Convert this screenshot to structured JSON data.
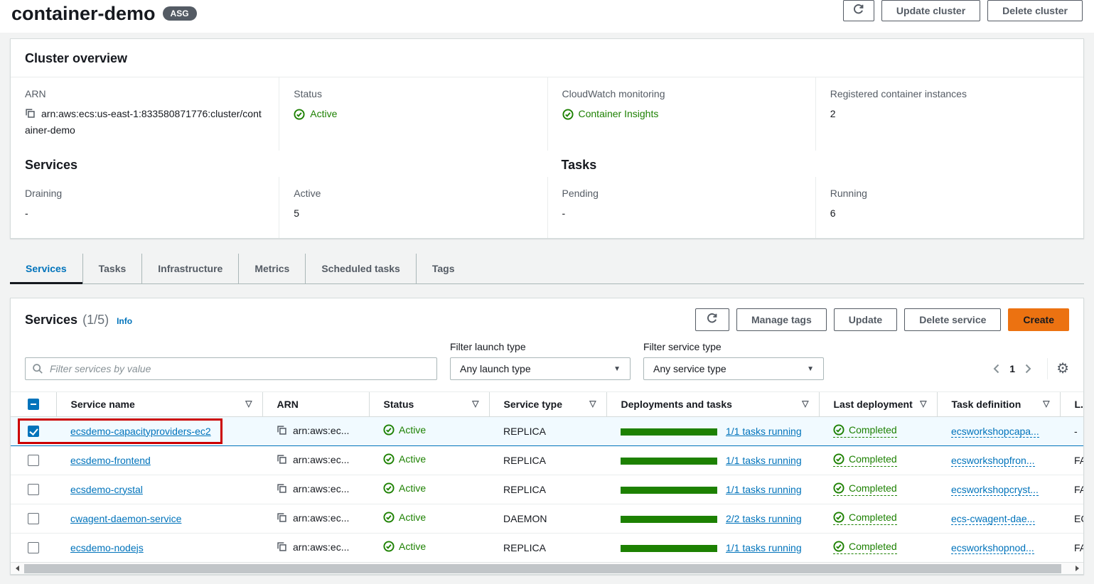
{
  "colors": {
    "link_blue": "#0073bb",
    "status_green": "#1d8102",
    "create_orange": "#ec7211",
    "selected_row_bg": "#f1faff",
    "annotation_red": "#cc0000",
    "badge_gray": "#545b64",
    "active_tab_underline": "#16191f"
  },
  "icons": {
    "sort_indicator": "▽",
    "caret_down": "▼",
    "gear": "⚙"
  },
  "page_header": {
    "title": "container-demo",
    "badge": "ASG",
    "update_button": "Update cluster",
    "delete_button": "Delete cluster"
  },
  "overview": {
    "title": "Cluster overview",
    "row1": [
      {
        "label": "ARN",
        "value": "arn:aws:ecs:us-east-1:833580871776:cluster/container-demo",
        "icon": "copy"
      },
      {
        "label": "Status",
        "value": "Active",
        "icon": "check"
      },
      {
        "label": "CloudWatch monitoring",
        "value": "Container Insights",
        "icon": "check"
      },
      {
        "label": "Registered container instances",
        "value": "2"
      }
    ],
    "services_heading": "Services",
    "tasks_heading": "Tasks",
    "row2": [
      {
        "label": "Draining",
        "value": "-"
      },
      {
        "label": "Active",
        "value": "5"
      },
      {
        "label": "Pending",
        "value": "-"
      },
      {
        "label": "Running",
        "value": "6"
      }
    ]
  },
  "tabs": [
    {
      "label": "Services",
      "active": true
    },
    {
      "label": "Tasks",
      "active": false
    },
    {
      "label": "Infrastructure",
      "active": false
    },
    {
      "label": "Metrics",
      "active": false
    },
    {
      "label": "Scheduled tasks",
      "active": false
    },
    {
      "label": "Tags",
      "active": false
    }
  ],
  "services_panel": {
    "title": "Services",
    "count": "(1/5)",
    "info": "Info",
    "action_buttons": [
      "Manage tags",
      "Update",
      "Delete service"
    ],
    "create_button": "Create",
    "search_placeholder": "Filter services by value",
    "launch_filter_label": "Filter launch type",
    "launch_filter_value": "Any launch type",
    "service_filter_label": "Filter service type",
    "service_filter_value": "Any service type",
    "page_number": "1"
  },
  "table": {
    "columns": [
      {
        "label": "Service name",
        "sortable": true
      },
      {
        "label": "ARN",
        "sortable": false
      },
      {
        "label": "Status",
        "sortable": true
      },
      {
        "label": "Service type",
        "sortable": true
      },
      {
        "label": "Deployments and tasks",
        "sortable": true
      },
      {
        "label": "Last deployment",
        "sortable": true
      },
      {
        "label": "Task definition",
        "sortable": true
      },
      {
        "label": "L.",
        "sortable": false
      }
    ],
    "rows": [
      {
        "checked": true,
        "selected": true,
        "annotated": true,
        "name": "ecsdemo-capacityproviders-ec2",
        "arn": "arn:aws:ec...",
        "status": "Active",
        "service_type": "REPLICA",
        "tasks_link": "1/1 tasks running",
        "deployment": "Completed",
        "task_definition": "ecsworkshopcapa...",
        "launch_type": "-"
      },
      {
        "checked": false,
        "selected": false,
        "annotated": false,
        "name": "ecsdemo-frontend",
        "arn": "arn:aws:ec...",
        "status": "Active",
        "service_type": "REPLICA",
        "tasks_link": "1/1 tasks running",
        "deployment": "Completed",
        "task_definition": "ecsworkshopfron...",
        "launch_type": "FA"
      },
      {
        "checked": false,
        "selected": false,
        "annotated": false,
        "name": "ecsdemo-crystal",
        "arn": "arn:aws:ec...",
        "status": "Active",
        "service_type": "REPLICA",
        "tasks_link": "1/1 tasks running",
        "deployment": "Completed",
        "task_definition": "ecsworkshopcryst...",
        "launch_type": "FA"
      },
      {
        "checked": false,
        "selected": false,
        "annotated": false,
        "name": "cwagent-daemon-service",
        "arn": "arn:aws:ec...",
        "status": "Active",
        "service_type": "DAEMON",
        "tasks_link": "2/2 tasks running",
        "deployment": "Completed",
        "task_definition": "ecs-cwagent-dae...",
        "launch_type": "EC"
      },
      {
        "checked": false,
        "selected": false,
        "annotated": false,
        "name": "ecsdemo-nodejs",
        "arn": "arn:aws:ec...",
        "status": "Active",
        "service_type": "REPLICA",
        "tasks_link": "1/1 tasks running",
        "deployment": "Completed",
        "task_definition": "ecsworkshopnod...",
        "launch_type": "FA"
      }
    ]
  }
}
